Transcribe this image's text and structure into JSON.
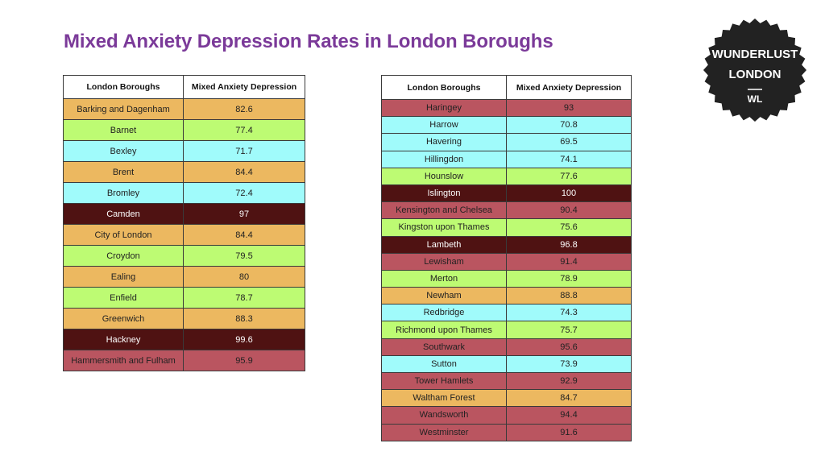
{
  "title": "Mixed Anxiety Depression Rates in London Boroughs",
  "logo": {
    "line1": "WUNDERLUST",
    "line2": "LONDON",
    "line3": "WL",
    "color": "#222222",
    "text_color": "#ffffff"
  },
  "colors": {
    "orange": "#ecb860",
    "green": "#bdfb73",
    "cyan": "#a0fbfb",
    "rose": "#ba5560",
    "maroon": "#4f1212",
    "dark_text": "#222222",
    "light_text": "#ffffff"
  },
  "chart_data": {
    "type": "table",
    "columns": [
      "London Boroughs",
      "Mixed Anxiety Depression"
    ],
    "tables": [
      {
        "rows": [
          {
            "borough": "Barking and Dagenham",
            "value": "82.6",
            "band": "orange"
          },
          {
            "borough": "Barnet",
            "value": "77.4",
            "band": "green"
          },
          {
            "borough": "Bexley",
            "value": "71.7",
            "band": "cyan"
          },
          {
            "borough": "Brent",
            "value": "84.4",
            "band": "orange"
          },
          {
            "borough": "Bromley",
            "value": "72.4",
            "band": "cyan"
          },
          {
            "borough": "Camden",
            "value": "97",
            "band": "maroon"
          },
          {
            "borough": "City of London",
            "value": "84.4",
            "band": "orange"
          },
          {
            "borough": "Croydon",
            "value": "79.5",
            "band": "green"
          },
          {
            "borough": "Ealing",
            "value": "80",
            "band": "orange"
          },
          {
            "borough": "Enfield",
            "value": "78.7",
            "band": "green"
          },
          {
            "borough": "Greenwich",
            "value": "88.3",
            "band": "orange"
          },
          {
            "borough": "Hackney",
            "value": "99.6",
            "band": "maroon"
          },
          {
            "borough": "Hammersmith and Fulham",
            "value": "95.9",
            "band": "rose"
          }
        ]
      },
      {
        "rows": [
          {
            "borough": "Haringey",
            "value": "93",
            "band": "rose"
          },
          {
            "borough": "Harrow",
            "value": "70.8",
            "band": "cyan"
          },
          {
            "borough": "Havering",
            "value": "69.5",
            "band": "cyan"
          },
          {
            "borough": "Hillingdon",
            "value": "74.1",
            "band": "cyan"
          },
          {
            "borough": "Hounslow",
            "value": "77.6",
            "band": "green"
          },
          {
            "borough": "Islington",
            "value": "100",
            "band": "maroon"
          },
          {
            "borough": "Kensington and Chelsea",
            "value": "90.4",
            "band": "rose"
          },
          {
            "borough": "Kingston upon Thames",
            "value": "75.6",
            "band": "green"
          },
          {
            "borough": "Lambeth",
            "value": "96.8",
            "band": "maroon"
          },
          {
            "borough": "Lewisham",
            "value": "91.4",
            "band": "rose"
          },
          {
            "borough": "Merton",
            "value": "78.9",
            "band": "green"
          },
          {
            "borough": "Newham",
            "value": "88.8",
            "band": "orange"
          },
          {
            "borough": "Redbridge",
            "value": "74.3",
            "band": "cyan"
          },
          {
            "borough": "Richmond upon Thames",
            "value": "75.7",
            "band": "green"
          },
          {
            "borough": "Southwark",
            "value": "95.6",
            "band": "rose"
          },
          {
            "borough": "Sutton",
            "value": "73.9",
            "band": "cyan"
          },
          {
            "borough": "Tower Hamlets",
            "value": "92.9",
            "band": "rose"
          },
          {
            "borough": "Waltham Forest",
            "value": "84.7",
            "band": "orange"
          },
          {
            "borough": "Wandsworth",
            "value": "94.4",
            "band": "rose"
          },
          {
            "borough": "Westminster",
            "value": "91.6",
            "band": "rose"
          }
        ]
      }
    ]
  }
}
